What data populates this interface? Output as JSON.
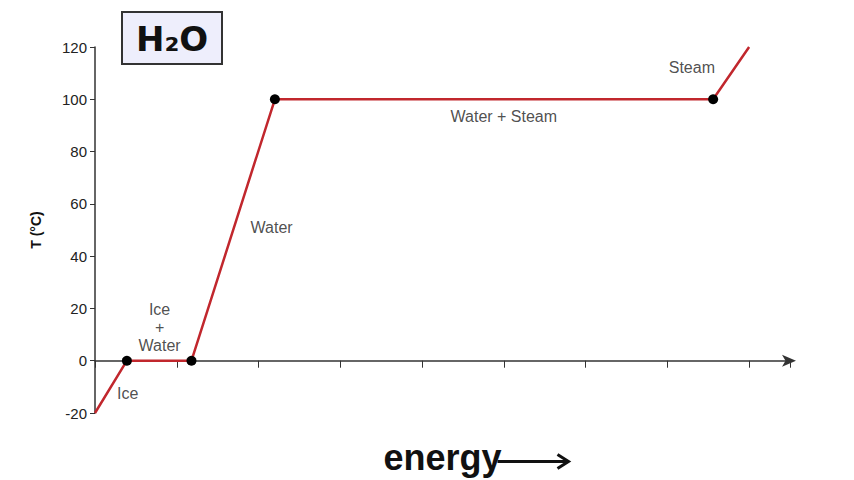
{
  "chart_data": {
    "type": "line",
    "title": "H₂O",
    "x_label": "energy",
    "y_label": "T (°C)",
    "x": [
      0,
      0.39,
      1.18,
      2.2,
      7.56,
      8.0
    ],
    "values": [
      -20,
      0,
      0,
      100,
      100,
      120
    ],
    "color": "#c1272d",
    "marker": "circle",
    "xlim": [
      0,
      8.5
    ],
    "xticks": [
      0,
      1,
      2,
      3,
      4,
      5,
      6,
      7,
      8
    ],
    "ylim": [
      -20,
      120
    ],
    "yticks": [
      -20,
      0,
      20,
      40,
      60,
      80,
      100,
      120
    ],
    "tick_labels": "y",
    "grid": false,
    "annotations": [
      {
        "text": "Ice",
        "x": 0.4,
        "y": -12.7
      },
      {
        "text": "Ice\n+\nWater",
        "x": 0.79,
        "y": 12.7
      },
      {
        "text": "Water",
        "x": 2.16,
        "y": 51
      },
      {
        "text": "Water + Steam",
        "x": 5.0,
        "y": 93.5
      },
      {
        "text": "Steam",
        "x": 7.3,
        "y": 112
      }
    ]
  }
}
